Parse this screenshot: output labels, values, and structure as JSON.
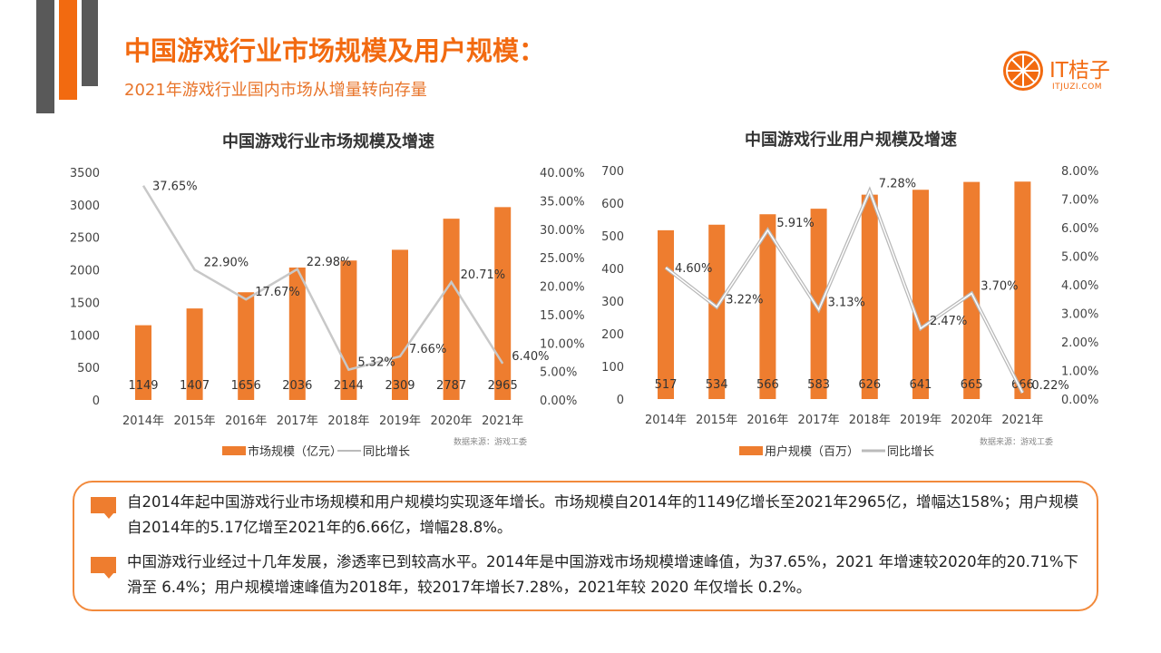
{
  "header": {
    "title": "中国游戏行业市场规模及用户规模：",
    "subtitle": "2021年游戏行业国内市场从增量转向存量"
  },
  "logo": {
    "name": "IT桔子",
    "url_text": "ITJUZI.COM"
  },
  "colors": {
    "accent": "#f26a10",
    "bar": "#ee7d2f",
    "line": "#c8c8c8",
    "dark": "#595959"
  },
  "chart_data": [
    {
      "type": "bar+line",
      "title": "中国游戏行业市场规模及增速",
      "categories": [
        "2014年",
        "2015年",
        "2016年",
        "2017年",
        "2018年",
        "2019年",
        "2020年",
        "2021年"
      ],
      "series": [
        {
          "name": "市场规模（亿元）",
          "type": "bar",
          "values": [
            1149,
            1407,
            1656,
            2036,
            2144,
            2309,
            2787,
            2965
          ],
          "labels": [
            "1149",
            "1407",
            "1656",
            "2036",
            "2144",
            "2309",
            "2787",
            "2965"
          ]
        },
        {
          "name": "同比增长",
          "type": "line",
          "values": [
            37.65,
            22.9,
            17.67,
            22.98,
            5.32,
            7.66,
            20.71,
            6.4
          ],
          "labels": [
            "37.65%",
            "22.90%",
            "17.67%",
            "22.98%",
            "5.32%",
            "7.66%",
            "20.71%",
            "6.40%"
          ]
        }
      ],
      "ylim": [
        0,
        3500
      ],
      "yticks": [
        "0",
        "500",
        "1000",
        "1500",
        "2000",
        "2500",
        "3000",
        "3500"
      ],
      "y2lim": [
        0,
        40
      ],
      "y2ticks": [
        "0.00%",
        "5.00%",
        "10.00%",
        "15.00%",
        "20.00%",
        "25.00%",
        "30.00%",
        "35.00%",
        "40.00%"
      ],
      "legend": "bottom",
      "source": "数据来源：游戏工委"
    },
    {
      "type": "bar+line",
      "title": "中国游戏行业用户规模及增速",
      "categories": [
        "2014年",
        "2015年",
        "2016年",
        "2017年",
        "2018年",
        "2019年",
        "2020年",
        "2021年"
      ],
      "series": [
        {
          "name": "用户规模（百万）",
          "type": "bar",
          "values": [
            517,
            534,
            566,
            583,
            626,
            641,
            665,
            666
          ],
          "labels": [
            "517",
            "534",
            "566",
            "583",
            "626",
            "641",
            "665",
            "666"
          ]
        },
        {
          "name": "同比增长",
          "type": "line",
          "values": [
            4.6,
            3.22,
            5.91,
            3.13,
            7.28,
            2.47,
            3.7,
            0.22
          ],
          "labels": [
            "4.60%",
            "3.22%",
            "5.91%",
            "3.13%",
            "7.28%",
            "2.47%",
            "3.70%",
            "0.22%"
          ]
        }
      ],
      "ylim": [
        0,
        700
      ],
      "yticks": [
        "0",
        "100",
        "200",
        "300",
        "400",
        "500",
        "600",
        "700"
      ],
      "y2lim": [
        0,
        8
      ],
      "y2ticks": [
        "0.00%",
        "1.00%",
        "2.00%",
        "3.00%",
        "4.00%",
        "5.00%",
        "6.00%",
        "7.00%",
        "8.00%"
      ],
      "legend": "bottom",
      "source": "数据来源：游戏工委"
    }
  ],
  "summary": {
    "p1": "自2014年起中国游戏行业市场规模和用户规模均实现逐年增长。市场规模自2014年的1149亿增长至2021年2965亿，增幅达158%；用户规模自2014年的5.17亿增至2021年的6.66亿，增幅28.8%。",
    "p2": "中国游戏行业经过十几年发展，渗透率已到较高水平。2014年是中国游戏市场规模增速峰值，为37.65%，2021 年增速较2020年的20.71%下滑至 6.4%；用户规模增速峰值为2018年，较2017年增长7.28%，2021年较 2020 年仅增长 0.2%。"
  }
}
